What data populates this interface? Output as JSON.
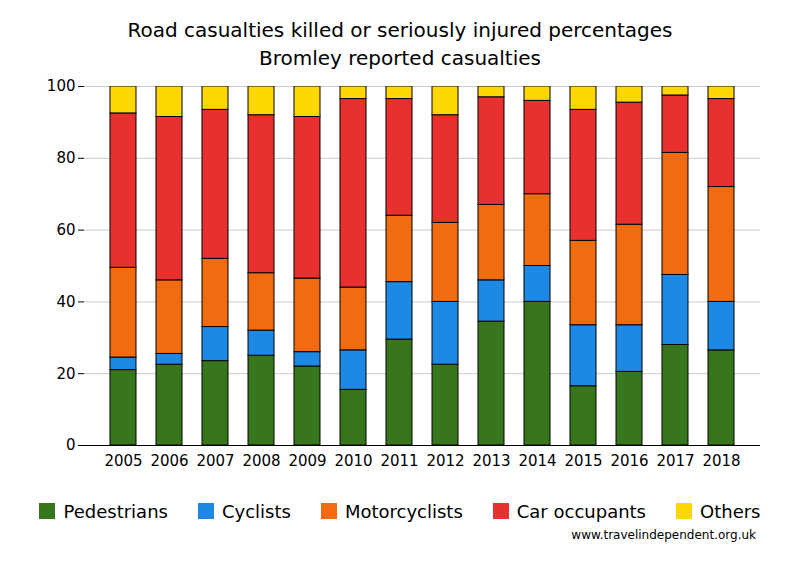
{
  "chart_data": {
    "type": "bar",
    "stacked": true,
    "grid": true,
    "title": "Road casualties killed or seriously injured percentages",
    "subtitle": "Bromley reported casualties",
    "caption": "www.travelindependent.org.uk",
    "categories": [
      "2005",
      "2006",
      "2007",
      "2008",
      "2009",
      "2010",
      "2011",
      "2012",
      "2013",
      "2014",
      "2015",
      "2016",
      "2017",
      "2018"
    ],
    "ylim": [
      0,
      100
    ],
    "yticks": [
      0,
      20,
      40,
      60,
      80,
      100
    ],
    "series": [
      {
        "name": "Pedestrians",
        "color": "#38761d",
        "values": [
          21,
          22.5,
          23.5,
          25,
          22,
          15.5,
          29.5,
          22.5,
          34.5,
          40,
          16.5,
          20.5,
          28,
          26.5
        ]
      },
      {
        "name": "Cyclists",
        "color": "#1e88e5",
        "values": [
          3.5,
          3,
          9.5,
          7,
          4,
          11,
          16,
          17.5,
          11.5,
          10,
          17,
          13,
          19.5,
          13.5
        ]
      },
      {
        "name": "Motorcyclists",
        "color": "#f26b0f",
        "values": [
          25,
          20.5,
          19,
          16,
          20.5,
          17.5,
          18.5,
          22,
          21,
          20,
          23.5,
          28,
          34,
          32
        ]
      },
      {
        "name": "Car occupants",
        "color": "#e8312f",
        "values": [
          43,
          45.5,
          41.5,
          44,
          45,
          52.5,
          32.5,
          30,
          30,
          26,
          36.5,
          34,
          16,
          24.5
        ]
      },
      {
        "name": "Others",
        "color": "#ffd700",
        "values": [
          7.5,
          8.5,
          6.5,
          8,
          8.5,
          3.5,
          3.5,
          8,
          3,
          4,
          6.5,
          4.5,
          2.5,
          3.5
        ]
      }
    ]
  }
}
